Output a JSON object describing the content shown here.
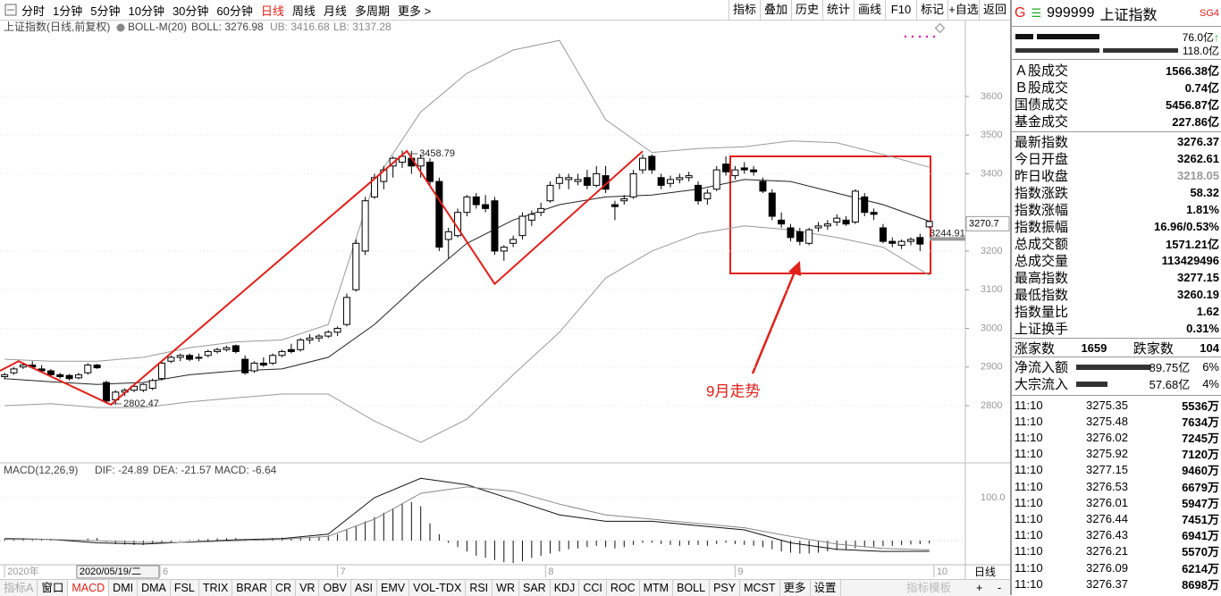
{
  "toolbar": {
    "periods": [
      "分时",
      "1分钟",
      "5分钟",
      "10分钟",
      "30分钟",
      "60分钟",
      "日线",
      "周线",
      "月线",
      "多周期",
      "更多 >"
    ],
    "active": 6,
    "tools": [
      "指标",
      "叠加",
      "历史",
      "统计",
      "画线",
      "F10",
      "标记",
      "+自选",
      "返回"
    ]
  },
  "chart_header": {
    "name": "上证指数(日线,前复权)",
    "indicator": "BOLL-M(20)",
    "values": [
      "BOLL: 3276.98",
      "UB: 3416.68",
      "LB: 3137.28"
    ]
  },
  "macd_header": {
    "name": "MACD(12,26,9)",
    "values": [
      "DIF: -24.89",
      "DEA: -21.57",
      "MACD: -6.64"
    ]
  },
  "chart_data": {
    "type": "candlestick",
    "xlim": [
      -0.5,
      103.9
    ],
    "ylim": [
      2652,
      3757
    ],
    "yticks": [
      2800,
      2900,
      3000,
      3100,
      3200,
      3400,
      3500,
      3600
    ],
    "grid": true,
    "candles": [
      [
        2875,
        2885,
        2868,
        2880
      ],
      [
        2885,
        2900,
        2880,
        2895
      ],
      [
        2900,
        2912,
        2895,
        2905
      ],
      [
        2905,
        2915,
        2895,
        2900
      ],
      [
        2895,
        2905,
        2885,
        2890
      ],
      [
        2890,
        2895,
        2875,
        2880
      ],
      [
        2880,
        2885,
        2870,
        2875
      ],
      [
        2878,
        2882,
        2865,
        2870
      ],
      [
        2872,
        2885,
        2868,
        2880
      ],
      [
        2885,
        2910,
        2880,
        2905
      ],
      [
        2905,
        2908,
        2895,
        2898
      ],
      [
        2860,
        2865,
        2805,
        2812
      ],
      [
        2815,
        2840,
        2802.47,
        2835
      ],
      [
        2835,
        2845,
        2825,
        2840
      ],
      [
        2840,
        2855,
        2835,
        2850
      ],
      [
        2840,
        2858,
        2835,
        2855
      ],
      [
        2845,
        2870,
        2840,
        2865
      ],
      [
        2870,
        2915,
        2865,
        2910
      ],
      [
        2915,
        2930,
        2910,
        2925
      ],
      [
        2925,
        2935,
        2915,
        2930
      ],
      [
        2930,
        2935,
        2915,
        2920
      ],
      [
        2925,
        2935,
        2915,
        2925
      ],
      [
        2930,
        2945,
        2925,
        2940
      ],
      [
        2940,
        2950,
        2935,
        2945
      ],
      [
        2945,
        2955,
        2940,
        2950
      ],
      [
        2955,
        2958,
        2935,
        2940
      ],
      [
        2920,
        2930,
        2880,
        2885
      ],
      [
        2890,
        2915,
        2885,
        2910
      ],
      [
        2910,
        2925,
        2900,
        2905
      ],
      [
        2910,
        2935,
        2905,
        2930
      ],
      [
        2930,
        2945,
        2925,
        2940
      ],
      [
        2945,
        2960,
        2935,
        2940
      ],
      [
        2945,
        2975,
        2940,
        2970
      ],
      [
        2970,
        2985,
        2960,
        2975
      ],
      [
        2975,
        2985,
        2965,
        2980
      ],
      [
        2980,
        2995,
        2975,
        2990
      ],
      [
        2990,
        3005,
        2980,
        3000
      ],
      [
        3010,
        3090,
        3005,
        3080
      ],
      [
        3100,
        3230,
        3095,
        3220
      ],
      [
        3200,
        3340,
        3190,
        3330
      ],
      [
        3340,
        3400,
        3335,
        3390
      ],
      [
        3380,
        3420,
        3360,
        3410
      ],
      [
        3420,
        3445,
        3390,
        3440
      ],
      [
        3430,
        3460,
        3415,
        3445
      ],
      [
        3440,
        3458.79,
        3400,
        3420
      ],
      [
        3420,
        3450,
        3390,
        3440
      ],
      [
        3430,
        3440,
        3370,
        3380
      ],
      [
        3380,
        3390,
        3200,
        3210
      ],
      [
        3230,
        3260,
        3180,
        3250
      ],
      [
        3240,
        3310,
        3235,
        3300
      ],
      [
        3300,
        3345,
        3290,
        3340
      ],
      [
        3340,
        3350,
        3310,
        3320
      ],
      [
        3320,
        3345,
        3300,
        3310
      ],
      [
        3330,
        3340,
        3190,
        3200
      ],
      [
        3200,
        3215,
        3175,
        3210
      ],
      [
        3220,
        3240,
        3210,
        3230
      ],
      [
        3240,
        3300,
        3230,
        3290
      ],
      [
        3280,
        3305,
        3265,
        3295
      ],
      [
        3300,
        3325,
        3290,
        3310
      ],
      [
        3330,
        3380,
        3325,
        3370
      ],
      [
        3375,
        3400,
        3360,
        3390
      ],
      [
        3385,
        3400,
        3360,
        3390
      ],
      [
        3380,
        3400,
        3370,
        3385
      ],
      [
        3390,
        3410,
        3360,
        3370
      ],
      [
        3370,
        3420,
        3365,
        3400
      ],
      [
        3395,
        3420,
        3350,
        3360
      ],
      [
        3320,
        3330,
        3280,
        3315
      ],
      [
        3330,
        3345,
        3320,
        3335
      ],
      [
        3340,
        3410,
        3335,
        3400
      ],
      [
        3410,
        3450,
        3400,
        3440
      ],
      [
        3445,
        3450,
        3400,
        3410
      ],
      [
        3390,
        3400,
        3360,
        3370
      ],
      [
        3375,
        3395,
        3365,
        3385
      ],
      [
        3385,
        3400,
        3375,
        3390
      ],
      [
        3390,
        3405,
        3380,
        3395
      ],
      [
        3370,
        3380,
        3320,
        3330
      ],
      [
        3335,
        3360,
        3320,
        3350
      ],
      [
        3360,
        3420,
        3355,
        3410
      ],
      [
        3425,
        3445,
        3395,
        3405
      ],
      [
        3395,
        3420,
        3385,
        3410
      ],
      [
        3415,
        3430,
        3400,
        3410
      ],
      [
        3410,
        3420,
        3395,
        3405
      ],
      [
        3380,
        3390,
        3350,
        3355
      ],
      [
        3350,
        3360,
        3280,
        3290
      ],
      [
        3280,
        3300,
        3260,
        3270
      ],
      [
        3260,
        3270,
        3225,
        3235
      ],
      [
        3250,
        3260,
        3215,
        3225
      ],
      [
        3220,
        3260,
        3215,
        3255
      ],
      [
        3260,
        3275,
        3250,
        3265
      ],
      [
        3265,
        3280,
        3255,
        3270
      ],
      [
        3275,
        3295,
        3265,
        3285
      ],
      [
        3280,
        3290,
        3265,
        3270
      ],
      [
        3275,
        3360,
        3270,
        3355
      ],
      [
        3340,
        3350,
        3290,
        3300
      ],
      [
        3300,
        3310,
        3280,
        3295
      ],
      [
        3260,
        3270,
        3220,
        3225
      ],
      [
        3225,
        3235,
        3210,
        3220
      ],
      [
        3215,
        3230,
        3205,
        3225
      ],
      [
        3225,
        3235,
        3215,
        3230
      ],
      [
        3235,
        3245,
        3200,
        3218.05
      ],
      [
        3262.61,
        3277.15,
        3260.19,
        3276.37
      ]
    ],
    "boll": {
      "x": [
        0,
        5,
        10,
        15,
        20,
        25,
        30,
        35,
        40,
        45,
        50,
        55,
        60,
        65,
        70,
        75,
        80,
        85,
        90,
        95,
        100
      ],
      "upper": [
        2920,
        2915,
        2915,
        2925,
        2950,
        2965,
        2970,
        3010,
        3380,
        3560,
        3660,
        3720,
        3745,
        3540,
        3455,
        3465,
        3470,
        3485,
        3480,
        3450,
        3416.68
      ],
      "mid": [
        2870,
        2862,
        2855,
        2860,
        2880,
        2890,
        2895,
        2925,
        3010,
        3120,
        3220,
        3280,
        3320,
        3340,
        3345,
        3360,
        3385,
        3380,
        3350,
        3320,
        3276.98
      ],
      "lower": [
        2800,
        2805,
        2795,
        2795,
        2810,
        2820,
        2830,
        2830,
        2760,
        2705,
        2765,
        2880,
        2990,
        3130,
        3200,
        3245,
        3265,
        3255,
        3235,
        3210,
        3137.28
      ]
    },
    "zigzag": {
      "x": [
        -0.5,
        1.5,
        11.5,
        43.5,
        53,
        69
      ],
      "values": [
        2890,
        2915,
        2802.47,
        3458.79,
        3115,
        3458
      ]
    },
    "high_label": 3458.79,
    "low_label": 2802.47,
    "last_price": 3270.7,
    "lb_price": 3244.91,
    "annotation": "9月走势",
    "date_labels": {
      "x": [
        0,
        7.8,
        16.8,
        36,
        58.5,
        79,
        100.5
      ],
      "labels": [
        "2020年",
        "2020/05/19/二",
        "6",
        "7",
        "8",
        "9",
        "10"
      ]
    },
    "macd": {
      "ylim": [
        -56,
        156
      ],
      "yticks": [
        {
          "value": 100,
          "label": "100.0"
        }
      ],
      "x": [
        0,
        5,
        10,
        15,
        20,
        25,
        30,
        35,
        40,
        45,
        50,
        55,
        60,
        65,
        70,
        75,
        80,
        85,
        90,
        95,
        100
      ],
      "dif": [
        5,
        3,
        -5,
        -8,
        -3,
        2,
        5,
        15,
        100,
        145,
        130,
        95,
        60,
        45,
        45,
        35,
        25,
        -5,
        -20,
        -25,
        -24.89
      ],
      "dea": [
        3,
        3,
        0,
        -4,
        -4,
        0,
        3,
        10,
        50,
        110,
        125,
        115,
        85,
        60,
        50,
        40,
        30,
        10,
        -8,
        -18,
        -21.57
      ],
      "hist": [
        4,
        5,
        6,
        4,
        3,
        2,
        1,
        -1,
        2,
        5,
        6,
        -3,
        -8,
        -9,
        -10,
        -10,
        -8,
        -5,
        -3,
        -1,
        2,
        3,
        4,
        5,
        6,
        6,
        4,
        4,
        5,
        6,
        7,
        7,
        8,
        9,
        10,
        12,
        15,
        25,
        35,
        45,
        55,
        65,
        75,
        85,
        90,
        80,
        40,
        15,
        -5,
        -15,
        -25,
        -35,
        -40,
        -45,
        -50,
        -52,
        -48,
        -40,
        -35,
        -30,
        -25,
        -20,
        -18,
        -15,
        -12,
        -15,
        -18,
        -15,
        -10,
        -5,
        -5,
        -8,
        -10,
        -12,
        -10,
        -10,
        -12,
        -8,
        -5,
        -8,
        -10,
        -12,
        -15,
        -20,
        -25,
        -28,
        -30,
        -30,
        -28,
        -25,
        -22,
        -20,
        -18,
        -15,
        -14,
        -13,
        -12,
        -10,
        -9,
        -8,
        -6.64
      ]
    }
  },
  "bottom_tabs": {
    "items": [
      "指标A",
      "窗口",
      "MACD",
      "DMI",
      "DMA",
      "FSL",
      "TRIX",
      "BRAR",
      "CR",
      "VR",
      "OBV",
      "ASI",
      "EMV",
      "VOL-TDX",
      "RSI",
      "WR",
      "SAR",
      "KDJ",
      "CCI",
      "ROC",
      "MTM",
      "BOLL",
      "PSY",
      "MCST",
      "更多",
      "设置"
    ],
    "active": 2,
    "right": "指标模板",
    "period": "日线",
    "zoom": [
      "+",
      "-"
    ]
  },
  "quote": {
    "flag": "G",
    "code": "999999",
    "name": "上证指数",
    "tag": "SG4",
    "bar_values": [
      "76.0亿",
      "118.0亿"
    ],
    "up_mark": "↑",
    "stats": [
      [
        "Ａ股成交",
        "1566.38亿"
      ],
      [
        "Ｂ股成交",
        "0.74亿"
      ],
      [
        "国债成交",
        "5456.87亿"
      ],
      [
        "基金成交",
        "227.86亿"
      ],
      [
        "最新指数",
        "3276.37"
      ],
      [
        "今日开盘",
        "3262.61"
      ],
      [
        "昨日收盘",
        "3218.05"
      ],
      [
        "指数涨跌",
        "58.32"
      ],
      [
        "指数涨幅",
        "1.81%"
      ],
      [
        "指数振幅",
        "16.96/0.53%"
      ],
      [
        "总成交额",
        "1571.21亿"
      ],
      [
        "总成交量",
        "113429496"
      ],
      [
        "最高指数",
        "3277.15"
      ],
      [
        "最低指数",
        "3260.19"
      ],
      [
        "指数量比",
        "1.62"
      ],
      [
        "上证换手",
        "0.31%"
      ]
    ],
    "breadth": [
      "涨家数",
      "1659",
      "跌家数",
      "104"
    ],
    "flows": [
      [
        "净流入额",
        "89.75亿",
        "6%"
      ],
      [
        "大宗流入",
        "57.68亿",
        "4%"
      ]
    ],
    "trades": [
      [
        "11:10",
        "3275.35",
        "5536万"
      ],
      [
        "11:10",
        "3275.48",
        "7634万"
      ],
      [
        "11:10",
        "3276.02",
        "7245万"
      ],
      [
        "11:10",
        "3275.92",
        "7120万"
      ],
      [
        "11:10",
        "3277.15",
        "9460万"
      ],
      [
        "11:10",
        "3276.53",
        "6679万"
      ],
      [
        "11:10",
        "3276.01",
        "5947万"
      ],
      [
        "11:10",
        "3276.44",
        "7451万"
      ],
      [
        "11:10",
        "3276.43",
        "6941万"
      ],
      [
        "11:10",
        "3276.21",
        "5570万"
      ],
      [
        "11:10",
        "3276.09",
        "6214万"
      ],
      [
        "11:10",
        "3276.37",
        "8698万"
      ]
    ]
  }
}
